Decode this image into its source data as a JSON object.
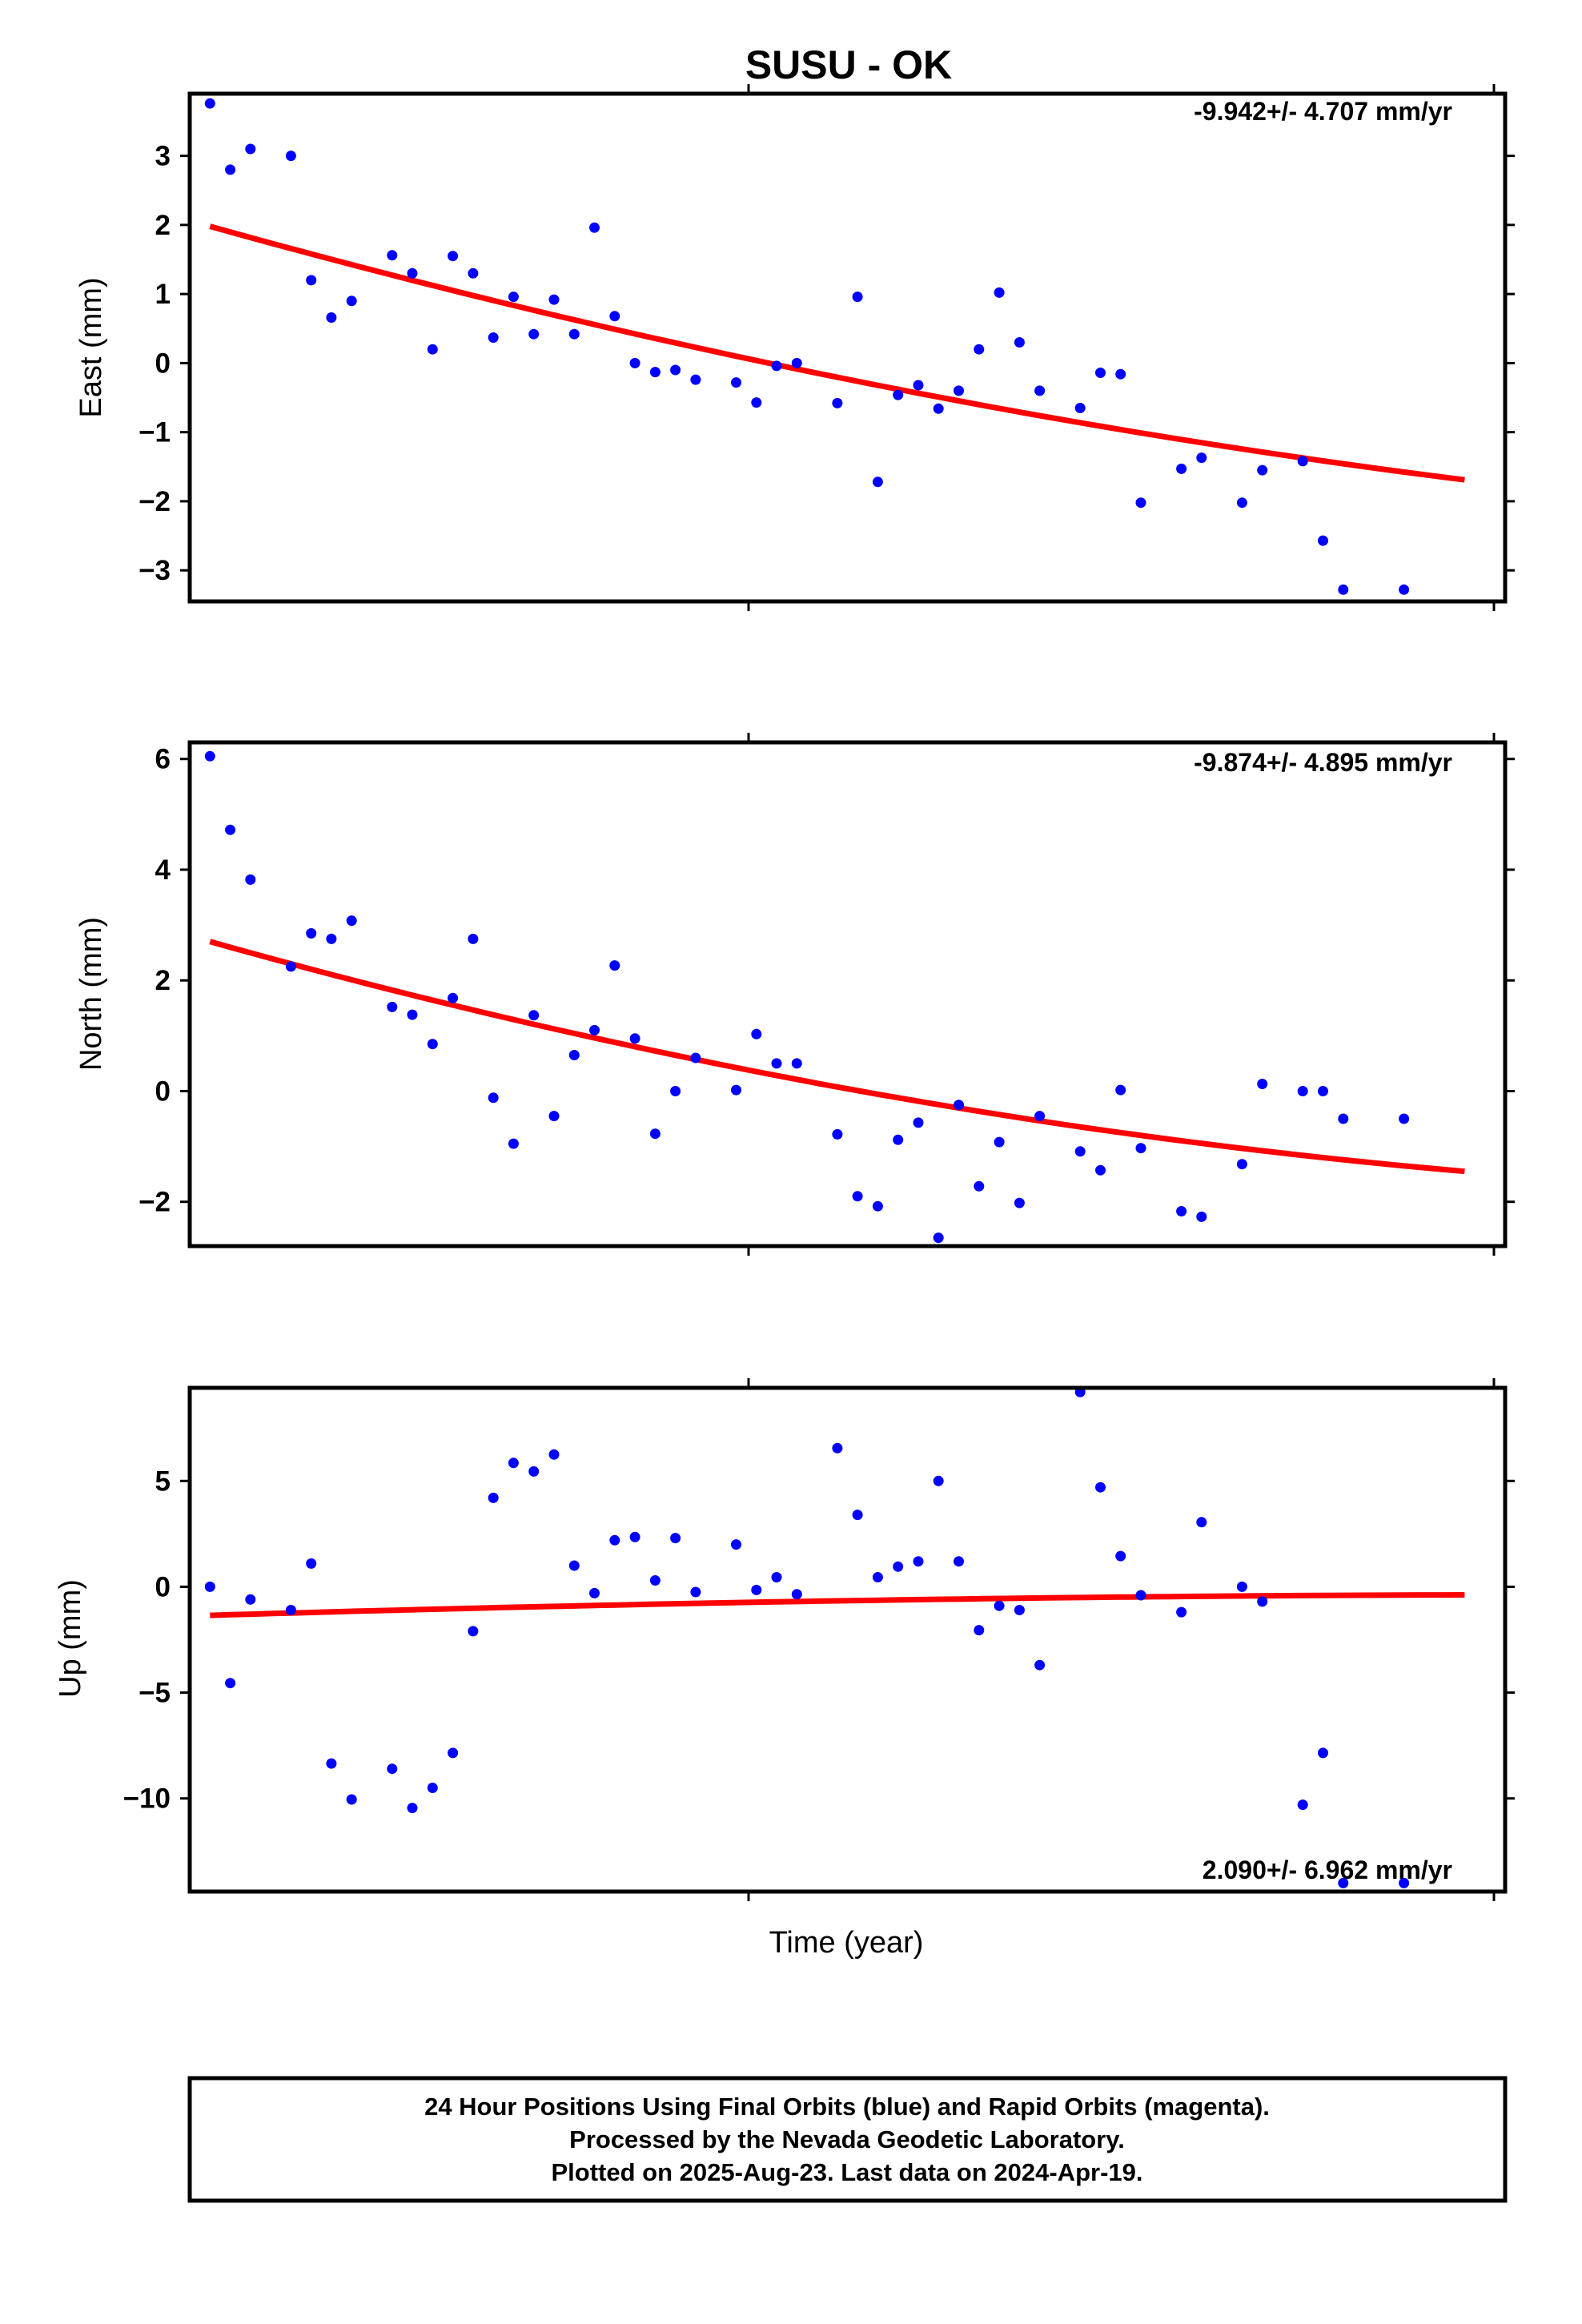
{
  "page": {
    "title": "SUSU - OK",
    "xlabel": "Time (year)"
  },
  "colors": {
    "final_orbits": "#0000ff",
    "fit_line": "#ff0000",
    "frame": "#000000"
  },
  "chart_data": [
    {
      "type": "scatter",
      "id": "east",
      "ylabel": "East (mm)",
      "rate_label": "-9.942+/- 4.707 mm/yr",
      "rate_position": "top-right",
      "ylim": [
        -3.45,
        3.9
      ],
      "yticks": [
        -3,
        -2,
        -1,
        0,
        1,
        2,
        3
      ],
      "ytick_labels": [
        "−3",
        "−2",
        "−1",
        "0",
        "1",
        "2",
        "3"
      ],
      "xlim": [
        0,
        65
      ],
      "series": [
        {
          "kind": "points",
          "x": [
            1,
            2,
            3,
            5,
            6,
            7,
            8,
            10,
            11,
            12,
            13,
            14,
            15,
            16,
            17,
            18,
            19,
            20,
            21,
            22,
            23,
            24,
            25,
            27,
            28,
            29,
            30,
            32,
            33,
            34,
            35,
            36,
            37,
            38,
            39,
            40,
            41,
            42,
            44,
            45,
            46,
            47,
            49,
            50,
            52,
            53,
            55,
            56,
            57,
            60
          ],
          "y": [
            3.76,
            2.8,
            3.1,
            3.0,
            1.2,
            0.66,
            0.9,
            1.56,
            1.3,
            0.2,
            1.55,
            1.3,
            0.37,
            0.96,
            0.42,
            0.92,
            0.42,
            1.96,
            0.68,
            0.0,
            -0.13,
            -0.1,
            -0.24,
            -0.28,
            -0.57,
            -0.04,
            0.0,
            -0.58,
            0.96,
            -1.72,
            -0.46,
            -0.32,
            -0.66,
            -0.4,
            0.2,
            1.02,
            0.3,
            -0.4,
            -0.65,
            -0.14,
            -0.16,
            -2.02,
            -1.53,
            -1.37,
            -2.02,
            -1.55,
            -1.42,
            -2.57,
            -3.28,
            -3.28
          ]
        },
        {
          "kind": "fit",
          "x": [
            1,
            63
          ],
          "y": [
            1.98,
            -1.69
          ],
          "curve": 0.35
        }
      ]
    },
    {
      "type": "scatter",
      "id": "north",
      "ylabel": "North (mm)",
      "rate_label": "-9.874+/- 4.895 mm/yr",
      "rate_position": "top-right",
      "ylim": [
        -2.8,
        6.3
      ],
      "yticks": [
        -2,
        0,
        2,
        4,
        6
      ],
      "ytick_labels": [
        "−2",
        "0",
        "2",
        "4",
        "6"
      ],
      "xlim": [
        0,
        65
      ],
      "series": [
        {
          "kind": "points",
          "x": [
            1,
            2,
            3,
            5,
            6,
            7,
            8,
            10,
            11,
            12,
            13,
            14,
            15,
            16,
            17,
            18,
            19,
            20,
            21,
            22,
            23,
            24,
            25,
            27,
            28,
            29,
            30,
            32,
            33,
            34,
            35,
            36,
            37,
            38,
            39,
            40,
            41,
            42,
            44,
            45,
            46,
            47,
            49,
            50,
            52,
            53,
            55,
            56,
            57,
            60
          ],
          "y": [
            6.05,
            4.72,
            3.82,
            2.25,
            2.85,
            2.75,
            3.08,
            1.52,
            1.38,
            0.85,
            1.68,
            2.75,
            -0.12,
            -0.95,
            1.37,
            -0.45,
            0.65,
            1.1,
            2.27,
            0.95,
            -0.77,
            0.0,
            0.6,
            0.02,
            1.03,
            0.5,
            0.5,
            -0.78,
            -1.9,
            -2.08,
            -0.88,
            -0.57,
            -2.65,
            -0.25,
            -1.72,
            -0.92,
            -2.02,
            -0.45,
            -1.09,
            -1.43,
            0.02,
            -1.03,
            -2.17,
            -2.27,
            -1.32,
            0.13,
            0.0,
            0.0,
            -0.5,
            -0.5
          ]
        },
        {
          "kind": "fit",
          "x": [
            1,
            63
          ],
          "y": [
            2.7,
            -1.45
          ],
          "curve": 0.55
        }
      ]
    },
    {
      "type": "scatter",
      "id": "up",
      "ylabel": "Up (mm)",
      "rate_label": "2.090+/- 6.962 mm/yr",
      "rate_position": "bottom-right",
      "ylim": [
        -14.4,
        9.4
      ],
      "yticks": [
        -10,
        -5,
        0,
        5
      ],
      "ytick_labels": [
        "−10",
        "−5",
        "0",
        "5"
      ],
      "xlim": [
        0,
        65
      ],
      "series": [
        {
          "kind": "points",
          "x": [
            1,
            2,
            3,
            5,
            6,
            7,
            8,
            10,
            11,
            12,
            13,
            14,
            15,
            16,
            17,
            18,
            19,
            20,
            21,
            22,
            23,
            24,
            25,
            27,
            28,
            29,
            30,
            32,
            33,
            34,
            35,
            36,
            37,
            38,
            39,
            40,
            41,
            42,
            44,
            45,
            46,
            47,
            49,
            50,
            52,
            53,
            55,
            56,
            57,
            60
          ],
          "y": [
            0.0,
            -4.55,
            -0.6,
            -1.1,
            1.1,
            -8.35,
            -10.05,
            -8.6,
            -10.45,
            -9.5,
            -7.85,
            -2.1,
            4.2,
            5.85,
            5.45,
            6.25,
            1.0,
            -0.3,
            2.2,
            2.35,
            0.3,
            2.3,
            -0.25,
            2.0,
            -0.15,
            0.45,
            -0.35,
            6.55,
            3.4,
            0.45,
            0.95,
            1.2,
            5.0,
            1.2,
            -2.05,
            -0.9,
            -1.1,
            -3.7,
            9.2,
            4.7,
            1.45,
            -0.4,
            -1.2,
            3.05,
            0.0,
            -0.7,
            -10.3,
            -7.85,
            -14.0,
            -14.0
          ]
        },
        {
          "kind": "fit",
          "x": [
            1,
            63
          ],
          "y": [
            -1.35,
            -0.38
          ],
          "curve": -0.2
        }
      ]
    }
  ],
  "footer": {
    "line1": "24 Hour Positions Using Final Orbits (blue) and Rapid Orbits (magenta).",
    "line2": "Processed by the Nevada Geodetic Laboratory.",
    "line3": "Plotted on 2025-Aug-23. Last data on 2024-Apr-19."
  }
}
